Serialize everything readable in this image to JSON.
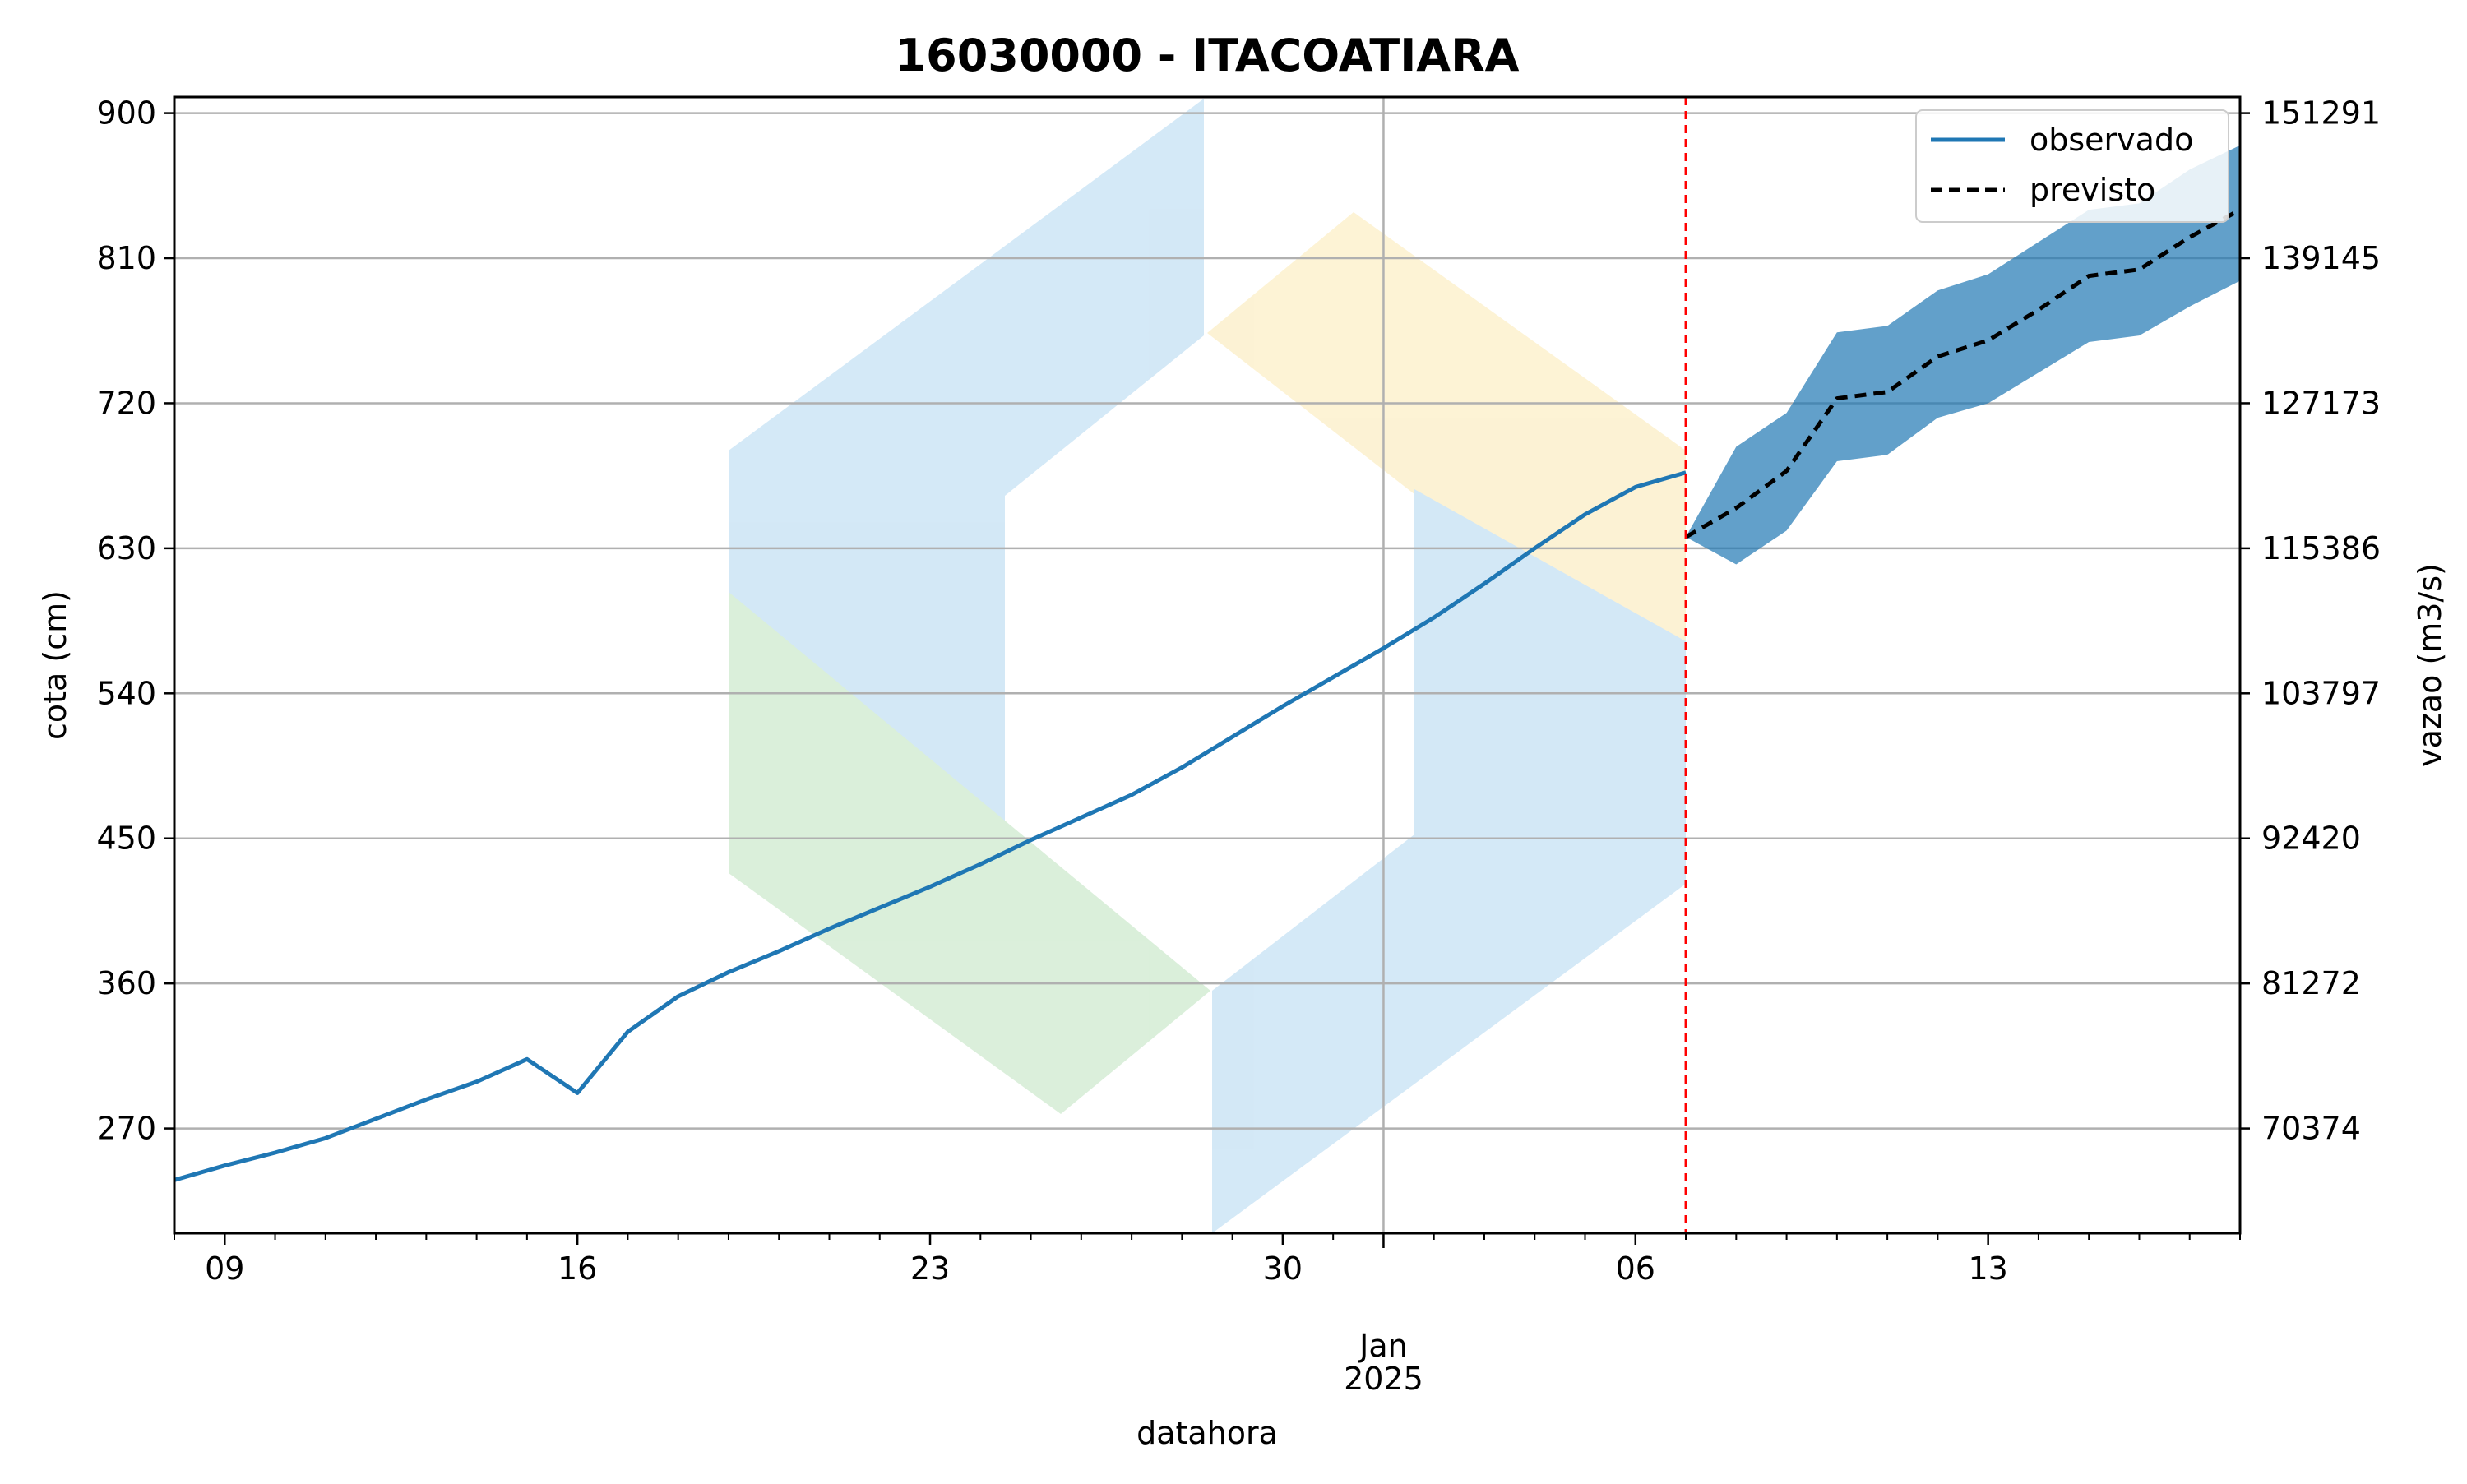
{
  "chart_data": {
    "type": "line",
    "title": "16030000 - ITACOATIARA",
    "xlabel": "datahora",
    "ylabel_left": "cota (cm)",
    "ylabel_right": "vazao (m3/s)",
    "grid": true,
    "legend_position": "top-right",
    "x_ticks_day": [
      "09",
      "16",
      "23",
      "30",
      "06",
      "13"
    ],
    "x_tick_month": "Jan",
    "x_tick_year": "2025",
    "y_ticks_left": [
      270,
      360,
      450,
      540,
      630,
      720,
      810,
      900
    ],
    "y_ticks_right": [
      "70374",
      "81272",
      "92420",
      "103797",
      "115386",
      "127173",
      "139145",
      "151291"
    ],
    "ylim": [
      205,
      910
    ],
    "xlim": [
      "2024-12-08",
      "2025-01-18"
    ],
    "forecast_start": "2025-01-07",
    "series": [
      {
        "name": "observado",
        "color": "#1f77b4",
        "style": "solid",
        "x": [
          "2024-12-08",
          "2024-12-09",
          "2024-12-10",
          "2024-12-11",
          "2024-12-12",
          "2024-12-13",
          "2024-12-14",
          "2024-12-15",
          "2024-12-16",
          "2024-12-17",
          "2024-12-18",
          "2024-12-19",
          "2024-12-20",
          "2024-12-21",
          "2024-12-22",
          "2024-12-23",
          "2024-12-24",
          "2024-12-25",
          "2024-12-26",
          "2024-12-27",
          "2024-12-28",
          "2024-12-29",
          "2024-12-30",
          "2024-12-31",
          "2025-01-01",
          "2025-01-02",
          "2025-01-03",
          "2025-01-04",
          "2025-01-05",
          "2025-01-06",
          "2025-01-07"
        ],
        "y": [
          238,
          247,
          255,
          264,
          276,
          288,
          299,
          313,
          292,
          330,
          352,
          367,
          380,
          394,
          407,
          420,
          434,
          449,
          463,
          477,
          494,
          513,
          532,
          550,
          568,
          587,
          608,
          630,
          651,
          668,
          677
        ]
      },
      {
        "name": "previsto",
        "color": "#000000",
        "style": "dashed",
        "x": [
          "2025-01-07",
          "2025-01-08",
          "2025-01-09",
          "2025-01-10",
          "2025-01-11",
          "2025-01-12",
          "2025-01-13",
          "2025-01-14",
          "2025-01-15",
          "2025-01-16",
          "2025-01-17",
          "2025-01-18"
        ],
        "y": [
          637,
          655,
          678,
          723,
          727,
          749,
          759,
          778,
          799,
          803,
          823,
          840
        ]
      }
    ],
    "band": {
      "color": "#1f77b4",
      "x": [
        "2025-01-07",
        "2025-01-08",
        "2025-01-09",
        "2025-01-10",
        "2025-01-11",
        "2025-01-12",
        "2025-01-13",
        "2025-01-14",
        "2025-01-15",
        "2025-01-16",
        "2025-01-17",
        "2025-01-18"
      ],
      "lower": [
        637,
        620,
        641,
        684,
        688,
        711,
        720,
        739,
        758,
        762,
        780,
        796
      ],
      "upper": [
        637,
        693,
        714,
        764,
        768,
        790,
        800,
        820,
        840,
        844,
        865,
        880
      ]
    }
  }
}
